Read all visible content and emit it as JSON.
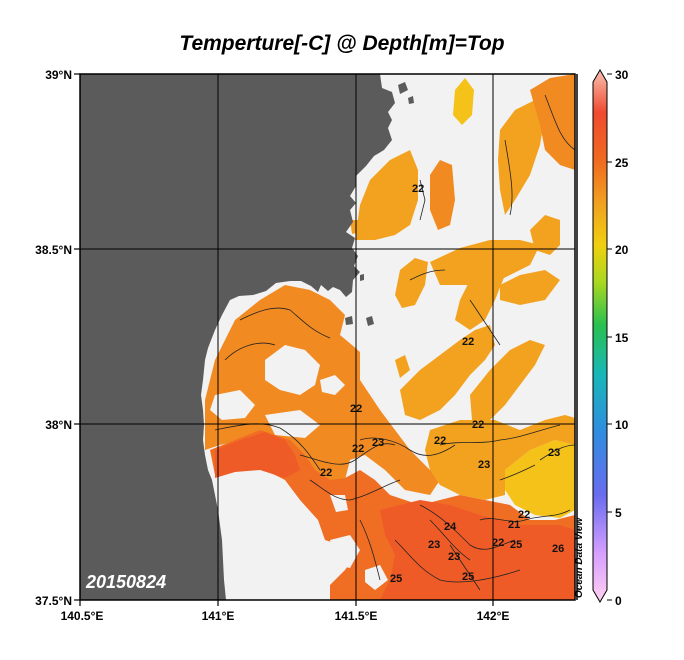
{
  "title": "Temperture[-C] @ Depth[m]=Top",
  "date_stamp": "20150824",
  "watermark": "Ocean Data View",
  "axes": {
    "lat_labels": [
      "39°N",
      "38.5°N",
      "38°N",
      "37.5°N"
    ],
    "lon_labels": [
      "140.5°E",
      "141°E",
      "141.5°E",
      "142°E"
    ]
  },
  "colorbar": {
    "tick_labels": [
      "30",
      "25",
      "20",
      "15",
      "10",
      "5",
      "0"
    ],
    "colors": [
      "#ffd0f0",
      "#d7a0ff",
      "#6a6cf0",
      "#2f8de0",
      "#18b7b7",
      "#28c050",
      "#a8d820",
      "#f0d010",
      "#f0a020",
      "#f06a20",
      "#f04a30",
      "#f8c0b0"
    ]
  },
  "contour_labels": [
    "22",
    "22",
    "22",
    "22",
    "23",
    "22",
    "23",
    "22",
    "22",
    "23",
    "22",
    "21",
    "22",
    "23",
    "26",
    "25",
    "25",
    "24",
    "23",
    "25"
  ],
  "colors": {
    "land": "#5b5b5b",
    "no_data": "#f2f2f2",
    "t21": "#f5c21a",
    "t22": "#f3a21f",
    "t23": "#f28a22",
    "t24": "#f06e24",
    "t25": "#ef5b27"
  },
  "chart_data": {
    "type": "heatmap",
    "title": "Temperture[-C] @ Depth[m]=Top",
    "xlim": [
      140.5,
      142.3
    ],
    "ylim": [
      37.5,
      39.0
    ],
    "x_ticks": [
      140.5,
      141.0,
      141.5,
      142.0
    ],
    "y_ticks": [
      37.5,
      38.0,
      38.5,
      39.0
    ],
    "color_range": [
      0,
      30
    ],
    "color_ticks": [
      0,
      5,
      10,
      15,
      20,
      25,
      30
    ],
    "contour_values": [
      21,
      22,
      23,
      24,
      25,
      26
    ],
    "date": "20150824"
  }
}
